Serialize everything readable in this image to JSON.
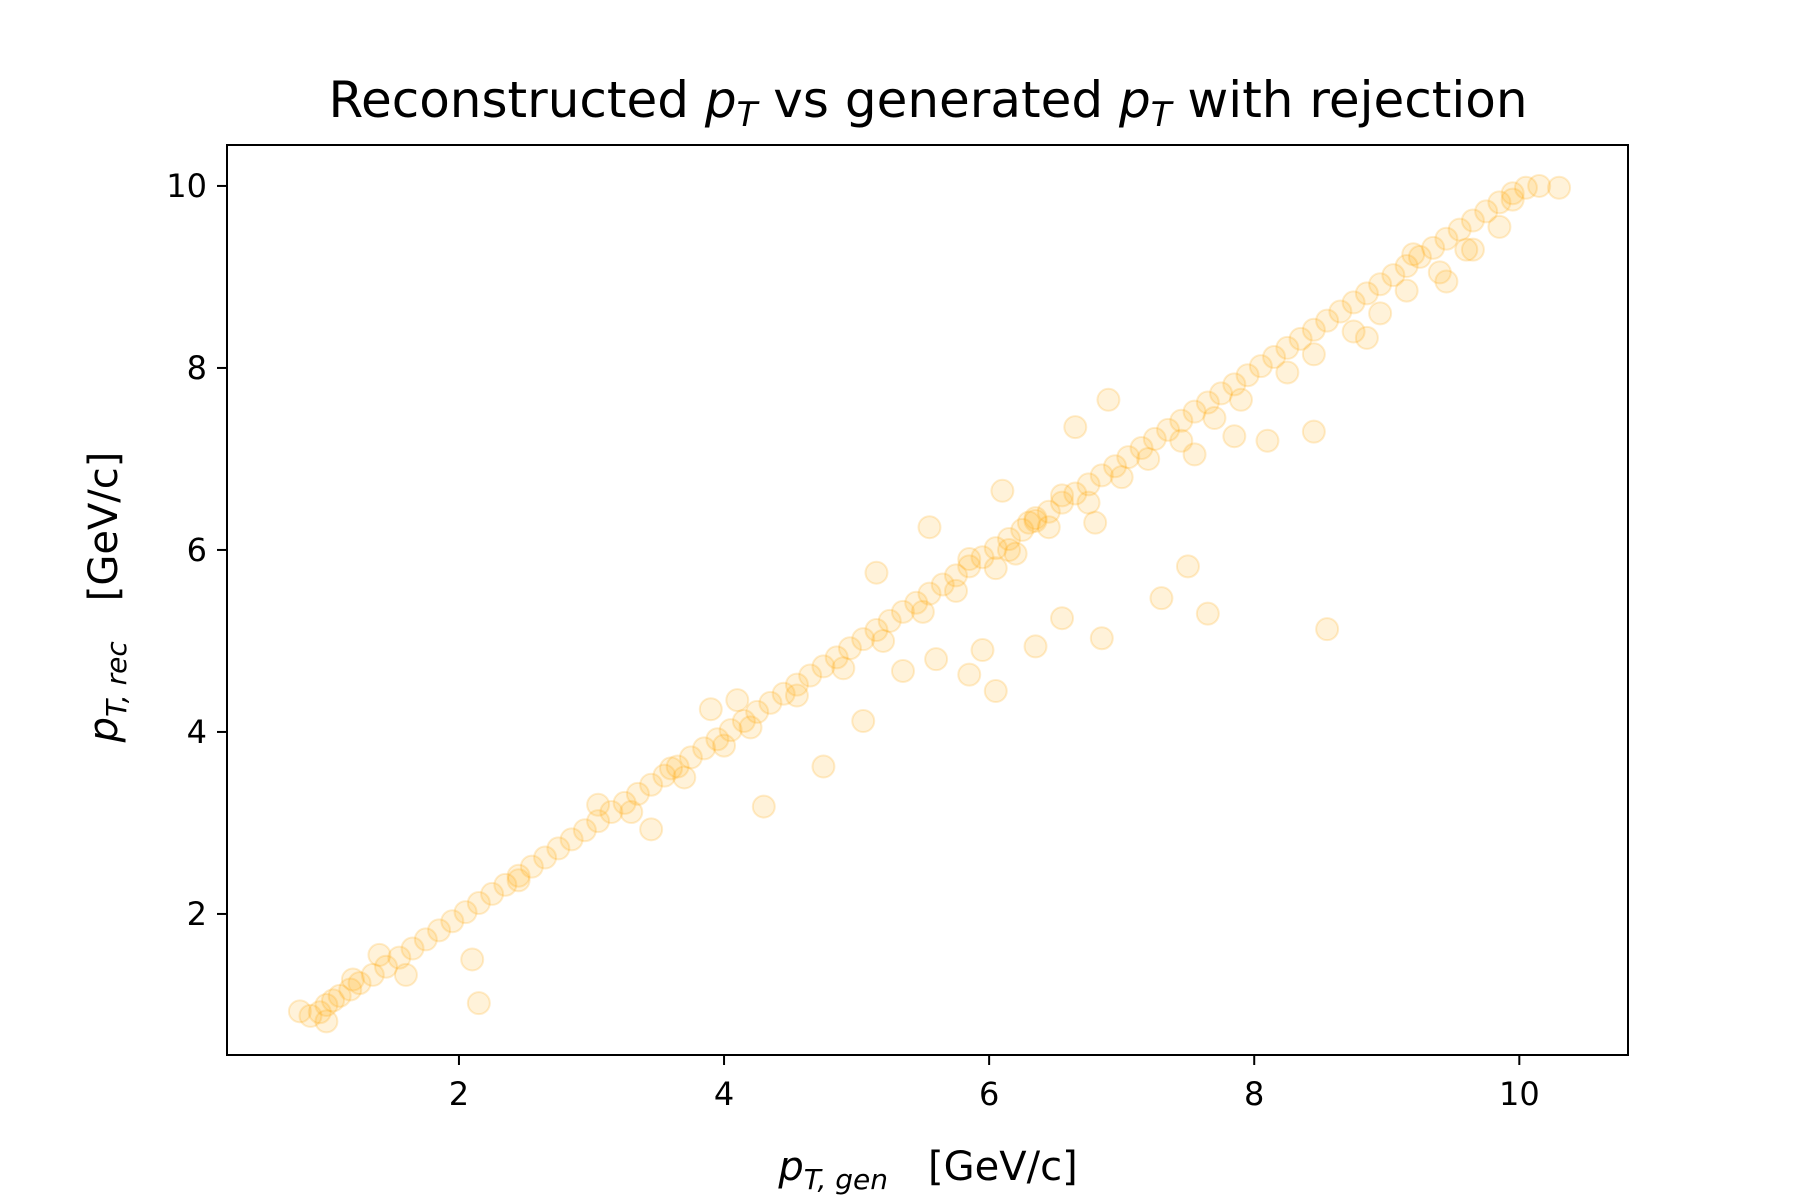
{
  "chart_data": {
    "type": "scatter",
    "title": {
      "part1": "Reconstructed ",
      "symbol1_base": "p",
      "symbol1_sub": "T",
      "part2": " vs generated ",
      "symbol2_base": "p",
      "symbol2_sub": "T",
      "part3": " with rejection"
    },
    "xlabel": {
      "symbol_base": "p",
      "symbol_sub": "T, gen",
      "unit": "[GeV/c]"
    },
    "ylabel": {
      "symbol_base": "p",
      "symbol_sub": "T, rec",
      "unit": "[GeV/c]"
    },
    "xlim": [
      0.25,
      10.82
    ],
    "ylim": [
      0.45,
      10.45
    ],
    "xticks": [
      "2",
      "4",
      "6",
      "8",
      "10"
    ],
    "yticks": [
      "2",
      "4",
      "6",
      "8",
      "10"
    ],
    "grid": false,
    "marker_color": "#FFA500",
    "marker_alpha": 0.15,
    "series": [
      {
        "x": [
          0.8,
          0.88,
          0.95,
          1.0,
          1.05,
          1.1,
          1.18,
          1.25,
          1.35,
          1.45,
          1.55,
          1.65,
          1.75,
          1.85,
          1.95,
          2.05,
          2.15,
          2.25,
          2.35,
          2.45,
          2.55,
          2.65,
          2.75,
          2.85,
          2.95,
          3.05,
          3.15,
          3.25,
          3.35,
          3.45,
          3.55,
          3.65,
          3.75,
          3.85,
          3.95,
          4.05,
          4.15,
          4.25,
          4.35,
          4.45,
          4.55,
          4.65,
          4.75,
          4.85,
          4.95,
          5.05,
          5.15,
          5.25,
          5.35,
          5.45,
          5.55,
          5.65,
          5.75,
          5.85,
          5.95,
          6.05,
          6.15,
          6.25,
          6.35,
          6.45,
          6.55,
          6.65,
          6.75,
          6.85,
          6.95,
          7.05,
          7.15,
          7.25,
          7.35,
          7.45,
          7.55,
          7.65,
          7.75,
          7.85,
          7.95,
          8.05,
          8.15,
          8.25,
          8.35,
          8.45,
          8.55,
          8.65,
          8.75,
          8.85,
          8.95,
          9.05,
          9.15,
          9.25,
          9.35,
          9.45,
          9.55,
          9.65,
          9.75,
          9.85,
          9.95,
          10.05,
          10.15,
          10.3,
          2.15,
          2.1,
          1.6,
          2.45,
          3.45,
          4.3,
          4.75,
          5.05,
          5.35,
          5.6,
          5.85,
          5.95,
          6.05,
          6.35,
          6.55,
          6.85,
          7.3,
          7.5,
          7.65,
          8.1,
          8.45,
          8.55,
          8.85,
          9.2,
          9.45,
          9.6,
          9.95,
          1.0,
          1.2,
          1.4,
          3.05,
          3.3,
          3.7,
          4.0,
          4.2,
          4.55,
          4.9,
          5.2,
          5.5,
          5.75,
          6.2,
          6.45,
          6.75,
          7.0,
          7.2,
          7.45,
          7.7,
          7.9,
          8.25,
          8.45,
          8.75,
          8.95,
          9.15,
          9.4,
          9.65,
          9.85,
          3.9,
          4.1,
          3.6,
          5.15,
          5.55,
          6.65,
          6.9,
          7.55,
          7.85,
          5.85,
          6.05,
          6.3,
          6.15,
          6.35,
          6.55,
          6.8,
          6.1
        ],
        "y": [
          0.93,
          0.88,
          0.92,
          1.0,
          1.05,
          1.1,
          1.17,
          1.24,
          1.33,
          1.42,
          1.52,
          1.62,
          1.72,
          1.82,
          1.92,
          2.02,
          2.12,
          2.22,
          2.32,
          2.42,
          2.52,
          2.62,
          2.72,
          2.82,
          2.92,
          3.02,
          3.12,
          3.22,
          3.32,
          3.42,
          3.52,
          3.62,
          3.72,
          3.82,
          3.92,
          4.02,
          4.12,
          4.22,
          4.32,
          4.42,
          4.52,
          4.62,
          4.72,
          4.82,
          4.92,
          5.02,
          5.12,
          5.22,
          5.32,
          5.42,
          5.52,
          5.62,
          5.72,
          5.82,
          5.92,
          6.02,
          6.12,
          6.22,
          6.32,
          6.42,
          6.52,
          6.62,
          6.72,
          6.82,
          6.92,
          7.02,
          7.12,
          7.22,
          7.32,
          7.42,
          7.52,
          7.62,
          7.72,
          7.82,
          7.92,
          8.02,
          8.12,
          8.22,
          8.32,
          8.42,
          8.52,
          8.62,
          8.72,
          8.82,
          8.92,
          9.02,
          9.12,
          9.22,
          9.32,
          9.42,
          9.52,
          9.62,
          9.72,
          9.82,
          9.92,
          9.98,
          10.0,
          9.98,
          1.02,
          1.5,
          1.33,
          2.37,
          2.93,
          3.18,
          3.62,
          4.12,
          4.67,
          4.8,
          4.63,
          4.9,
          4.45,
          4.94,
          5.25,
          5.03,
          5.47,
          5.82,
          5.3,
          7.2,
          7.3,
          5.13,
          8.33,
          9.25,
          8.95,
          9.3,
          9.85,
          0.82,
          1.28,
          1.55,
          3.2,
          3.12,
          3.5,
          3.85,
          4.05,
          4.4,
          4.7,
          5.0,
          5.32,
          5.55,
          5.96,
          6.25,
          6.52,
          6.8,
          7.0,
          7.2,
          7.45,
          7.65,
          7.95,
          8.15,
          8.4,
          8.6,
          8.85,
          9.05,
          9.3,
          9.55,
          4.25,
          4.35,
          3.6,
          5.75,
          6.25,
          7.35,
          7.65,
          7.05,
          7.25,
          5.9,
          5.8,
          6.3,
          6.0,
          6.35,
          6.6,
          6.3,
          6.65
        ]
      }
    ]
  }
}
